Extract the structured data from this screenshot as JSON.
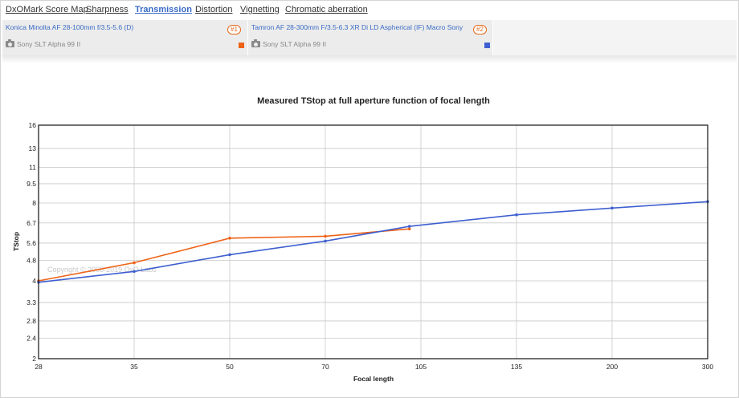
{
  "tabs": [
    {
      "label": "DxOMark Score Map",
      "active": false
    },
    {
      "label": "Sharpness",
      "active": false
    },
    {
      "label": "Transmission",
      "active": true
    },
    {
      "label": "Distortion",
      "active": false
    },
    {
      "label": "Vignetting",
      "active": false
    },
    {
      "label": "Chromatic aberration",
      "active": false
    }
  ],
  "lenses": [
    {
      "name": "Konica Minolta AF 28-100mm f/3.5-5.6 (D)",
      "badge": "#1",
      "camera": "Sony SLT Alpha 99 II",
      "color": "#ee6216"
    },
    {
      "name": "Tamron AF 28-300mm F/3.5-6.3 XR Di LD Aspherical (IF) Macro Sony",
      "badge": "#2",
      "camera": "Sony SLT Alpha 99 II",
      "color": "#3e5fd0"
    }
  ],
  "watermark": "Copyright © 2008-2019 DxO Labs",
  "chart_data": {
    "type": "line",
    "title": "Measured TStop at full aperture function of focal length",
    "xlabel": "Focal length",
    "ylabel": "TStop",
    "x_scale": "log",
    "y_scale": "log",
    "xlim": [
      28,
      300
    ],
    "ylim": [
      2,
      16
    ],
    "x_ticks": [
      28,
      35,
      50,
      70,
      105,
      135,
      200,
      300
    ],
    "y_ticks": [
      2,
      2.4,
      2.8,
      3.3,
      4,
      4.8,
      5.6,
      6.7,
      8,
      9.5,
      11,
      13,
      16
    ],
    "grid": true,
    "series": [
      {
        "color": "#ee6216",
        "points": [
          [
            28,
            4.0
          ],
          [
            35,
            4.7
          ],
          [
            50,
            5.85
          ],
          [
            70,
            5.95
          ],
          [
            100,
            6.35
          ]
        ]
      },
      {
        "color": "#3e5fd0",
        "points": [
          [
            28,
            3.95
          ],
          [
            35,
            4.35
          ],
          [
            50,
            5.05
          ],
          [
            70,
            5.7
          ],
          [
            100,
            6.5
          ],
          [
            135,
            7.2
          ],
          [
            200,
            7.65
          ],
          [
            300,
            8.1
          ]
        ]
      }
    ]
  }
}
